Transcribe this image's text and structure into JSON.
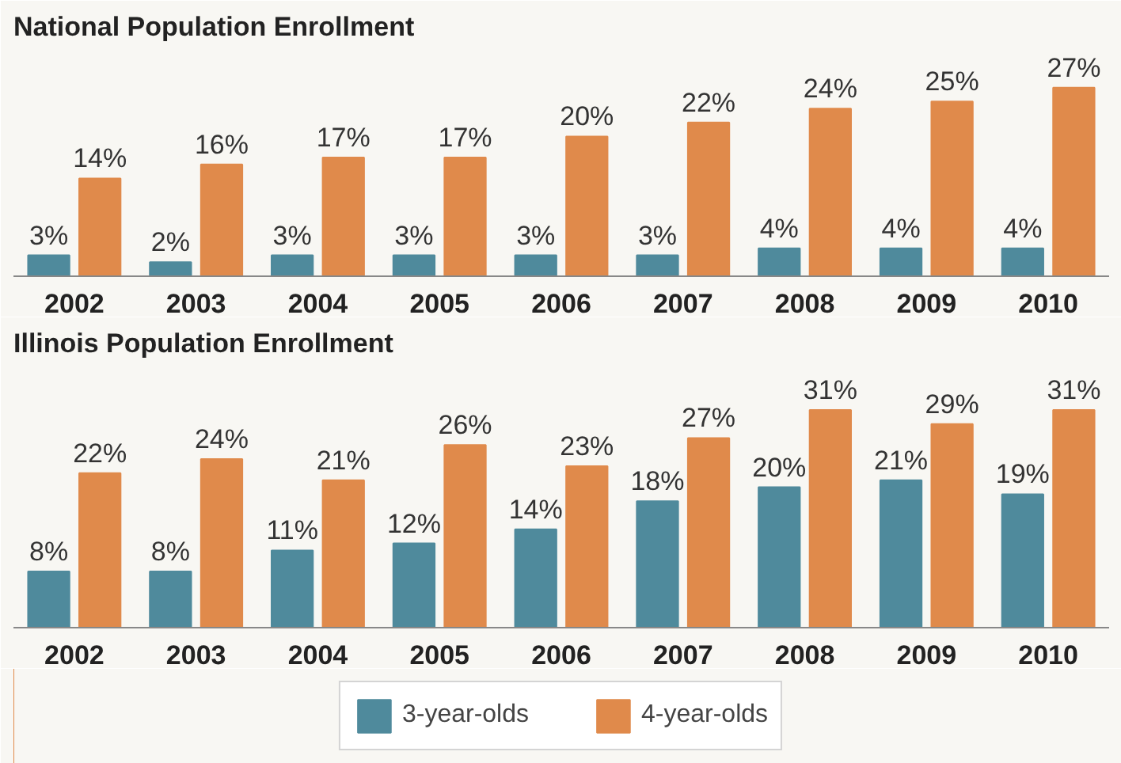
{
  "chart_data": [
    {
      "type": "bar",
      "title": "National Population Enrollment",
      "categories": [
        "2002",
        "2003",
        "2004",
        "2005",
        "2006",
        "2007",
        "2008",
        "2009",
        "2010"
      ],
      "legend": false,
      "grid": false,
      "series": [
        {
          "color": "#4f8a9c",
          "values": [
            3,
            2,
            3,
            3,
            3,
            3,
            4,
            4,
            4
          ],
          "value_labels": [
            "3%",
            "2%",
            "3%",
            "3%",
            "3%",
            "3%",
            "4%",
            "4%",
            "4%"
          ]
        },
        {
          "color": "#e08a4b",
          "values": [
            14,
            16,
            17,
            17,
            20,
            22,
            24,
            25,
            27
          ],
          "value_labels": [
            "14%",
            "16%",
            "17%",
            "17%",
            "20%",
            "22%",
            "24%",
            "25%",
            "27%"
          ]
        }
      ]
    },
    {
      "type": "bar",
      "title": "Illinois Population Enrollment",
      "categories": [
        "2002",
        "2003",
        "2004",
        "2005",
        "2006",
        "2007",
        "2008",
        "2009",
        "2010"
      ],
      "legend": "bottom",
      "grid": false,
      "series": [
        {
          "name": "3-year-olds",
          "color": "#4f8a9c",
          "values": [
            8,
            8,
            11,
            12,
            14,
            18,
            20,
            21,
            19
          ],
          "value_labels": [
            "8%",
            "8%",
            "11%",
            "12%",
            "14%",
            "18%",
            "20%",
            "21%",
            "19%"
          ]
        },
        {
          "name": "4-year-olds",
          "color": "#e08a4b",
          "values": [
            22,
            24,
            21,
            26,
            23,
            27,
            31,
            29,
            31
          ],
          "value_labels": [
            "22%",
            "24%",
            "21%",
            "26%",
            "23%",
            "27%",
            "31%",
            "29%",
            "31%"
          ]
        }
      ]
    }
  ]
}
